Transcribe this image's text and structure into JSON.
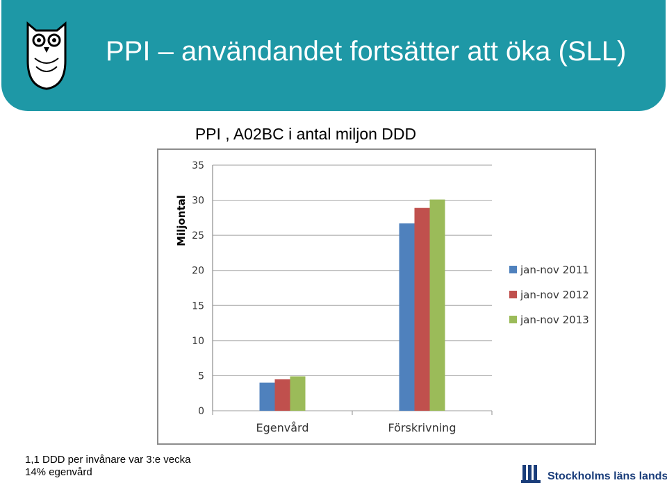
{
  "header": {
    "title": "PPI – användandet fortsätter att öka (SLL)"
  },
  "chart_title": "PPI , A02BC i antal miljon DDD",
  "colors": {
    "header_bg": "#1e98a6",
    "series": [
      "#4f81bd",
      "#c0504d",
      "#9bbb59"
    ]
  },
  "chart_data": {
    "type": "bar",
    "title": "PPI , A02BC i antal miljon DDD",
    "ylabel": "Miljontal",
    "xlabel": "",
    "ylim": [
      0,
      35
    ],
    "yticks": [
      0,
      5,
      10,
      15,
      20,
      25,
      30,
      35
    ],
    "grid": true,
    "legend_position": "right",
    "categories": [
      "Egenvård",
      "Förskrivning"
    ],
    "series": [
      {
        "name": "jan-nov 2011",
        "values": [
          4.0,
          26.7
        ]
      },
      {
        "name": "jan-nov 2012",
        "values": [
          4.5,
          28.9
        ]
      },
      {
        "name": "jan-nov 2013",
        "values": [
          4.9,
          30.1
        ]
      }
    ]
  },
  "notes": [
    "1,1 DDD per invånare var 3:e vecka",
    "14% egenvård"
  ],
  "footer_logo": {
    "text": "Stockholms läns landsting"
  }
}
